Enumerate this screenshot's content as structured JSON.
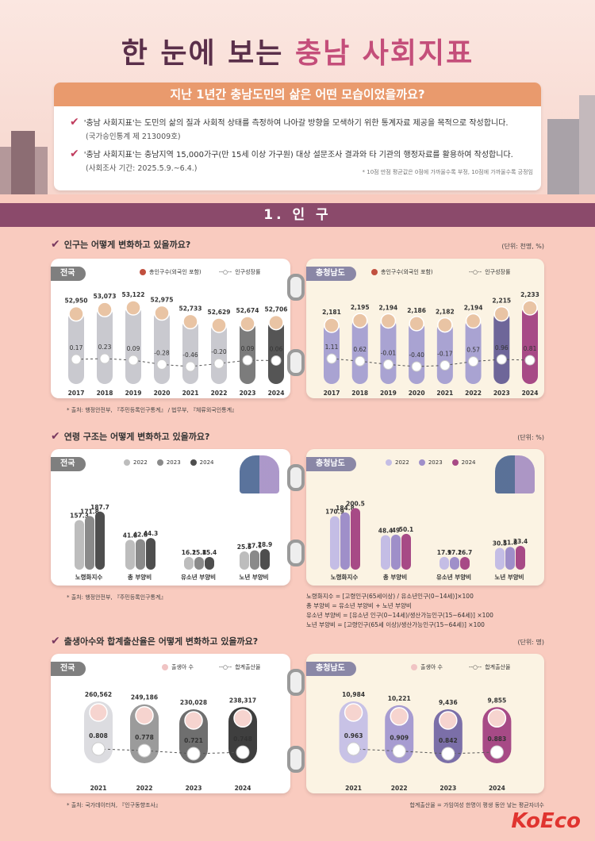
{
  "header": {
    "title_prefix": "한 눈에 보는",
    "title_highlight": "충남 사회지표",
    "subtitle": "지난 1년간 충남도민의 삶은 어떤 모습이었을까요?"
  },
  "intro": {
    "item1": "'충남 사회지표'는 도민의 삶의 질과 사회적 상태를 측정하여 나아갈 방향을 모색하기 위한 통계자료 제공을 목적으로 작성합니다.",
    "item1_sub": "(국가승인통계 제 213009호)",
    "item2": "'충남 사회지표'는 충남지역 15,000가구(만 15세 이상 가구원) 대상 설문조사 결과와 타 기관의 행정자료를 활용하여 작성합니다.",
    "item2_sub": "(사회조사 기간: 2025.5.9.~6.4.)",
    "note": "* 10점 만점 평균값은 0점에 가까울수록 부정, 10점에 가까울수록 긍정임"
  },
  "section": {
    "title": "1. 인   구"
  },
  "q1": {
    "question": "인구는 어떻게 변화하고 있을까요?",
    "unit": "(단위: 천명, %)",
    "legend_pop": "총인구수(외국인 포함)",
    "legend_rate": "인구성장률",
    "source": "* 출처: 행정안전부, 『주민등록인구통계』 / 법무부, 『체류외국인통계』"
  },
  "q2": {
    "question": "연령 구조는 어떻게 변화하고 있을까요?",
    "unit": "(단위: %)",
    "source": "* 출처: 행정안전부, 『주민등록인구통계』",
    "formula1": "노령화지수 = [고령인구(65세이상) / 유소년인구(0~14세)]×100",
    "formula2": "총 부양비 = 유소년 부양비 +  노년 부양비",
    "formula3": "유소년 부양비 = [유소년 인구(0~14세)/생산가능인구(15~64세)] ×100",
    "formula4": "노년 부양비 = [고령인구(65세 이상)/생산가능인구(15~64세)] ×100"
  },
  "q3": {
    "question": "출생아수와 합계출산율은 어떻게 변화하고 있을까요?",
    "unit": "(단위: 명)",
    "legend_birth": "출생아 수",
    "legend_tfr": "합계출산율",
    "source": "* 출처: 국가데이터처, 『인구동향조사』",
    "footnote": "합계출산율 = 가임여성 한명이 평생 동안 낳는 평균자녀수"
  },
  "logo": {
    "text": "KoEco"
  },
  "colors": {
    "national": "#8f8f8f",
    "national_dark": "#4a4a4a",
    "chungnam": "#a9a3d2",
    "chungnam_dark": "#6e6699",
    "chungnam_accent": "#a74a86",
    "accent": "#8b4a6b"
  },
  "chart_data": [
    {
      "type": "bar",
      "title": "",
      "region": "전국",
      "categories": [
        "2017",
        "2018",
        "2019",
        "2020",
        "2021",
        "2022",
        "2023",
        "2024"
      ],
      "series": [
        {
          "name": "총인구수(외국인 포함)",
          "values": [
            52950,
            53073,
            53122,
            52975,
            52733,
            52629,
            52674,
            52706
          ]
        },
        {
          "name": "인구성장률",
          "values": [
            0.17,
            0.23,
            0.09,
            -0.28,
            -0.46,
            -0.2,
            0.09,
            0.06
          ]
        }
      ]
    },
    {
      "type": "bar",
      "title": "",
      "region": "충청남도",
      "categories": [
        "2017",
        "2018",
        "2019",
        "2020",
        "2021",
        "2022",
        "2023",
        "2024"
      ],
      "series": [
        {
          "name": "총인구수(외국인 포함)",
          "values": [
            2181,
            2195,
            2194,
            2186,
            2182,
            2194,
            2215,
            2233
          ]
        },
        {
          "name": "인구성장률",
          "values": [
            1.11,
            0.62,
            -0.01,
            -0.4,
            -0.17,
            0.57,
            0.96,
            0.81
          ]
        }
      ]
    },
    {
      "type": "bar",
      "title": "",
      "region": "전국",
      "categories": [
        "노령화지수",
        "총 부양비",
        "유소년 부양비",
        "노년 부양비"
      ],
      "series": [
        {
          "name": "2022",
          "values": [
            157.3,
            41.8,
            16.2,
            25.5
          ]
        },
        {
          "name": "2023",
          "values": [
            171.8,
            42.8,
            15.8,
            27.1
          ]
        },
        {
          "name": "2024",
          "values": [
            187.7,
            44.3,
            15.4,
            28.9
          ]
        }
      ]
    },
    {
      "type": "bar",
      "title": "",
      "region": "충청남도",
      "categories": [
        "노령화지수",
        "총 부양비",
        "유소년 부양비",
        "노년 부양비"
      ],
      "series": [
        {
          "name": "2022",
          "values": [
            170.9,
            48.4,
            17.9,
            30.5
          ]
        },
        {
          "name": "2023",
          "values": [
            184.8,
            49.0,
            17.2,
            31.8
          ]
        },
        {
          "name": "2024",
          "values": [
            200.5,
            50.1,
            16.7,
            33.4
          ]
        }
      ]
    },
    {
      "type": "bar",
      "title": "",
      "region": "전국",
      "categories": [
        "2021",
        "2022",
        "2023",
        "2024"
      ],
      "series": [
        {
          "name": "출생아 수",
          "values": [
            260562,
            249186,
            230028,
            238317
          ]
        },
        {
          "name": "합계출산율",
          "values": [
            0.808,
            0.778,
            0.721,
            0.748
          ]
        }
      ]
    },
    {
      "type": "bar",
      "title": "",
      "region": "충청남도",
      "categories": [
        "2021",
        "2022",
        "2023",
        "2024"
      ],
      "series": [
        {
          "name": "출생아 수",
          "values": [
            10984,
            10221,
            9436,
            9855
          ]
        },
        {
          "name": "합계출산율",
          "values": [
            0.963,
            0.909,
            0.842,
            0.883
          ]
        }
      ]
    }
  ]
}
